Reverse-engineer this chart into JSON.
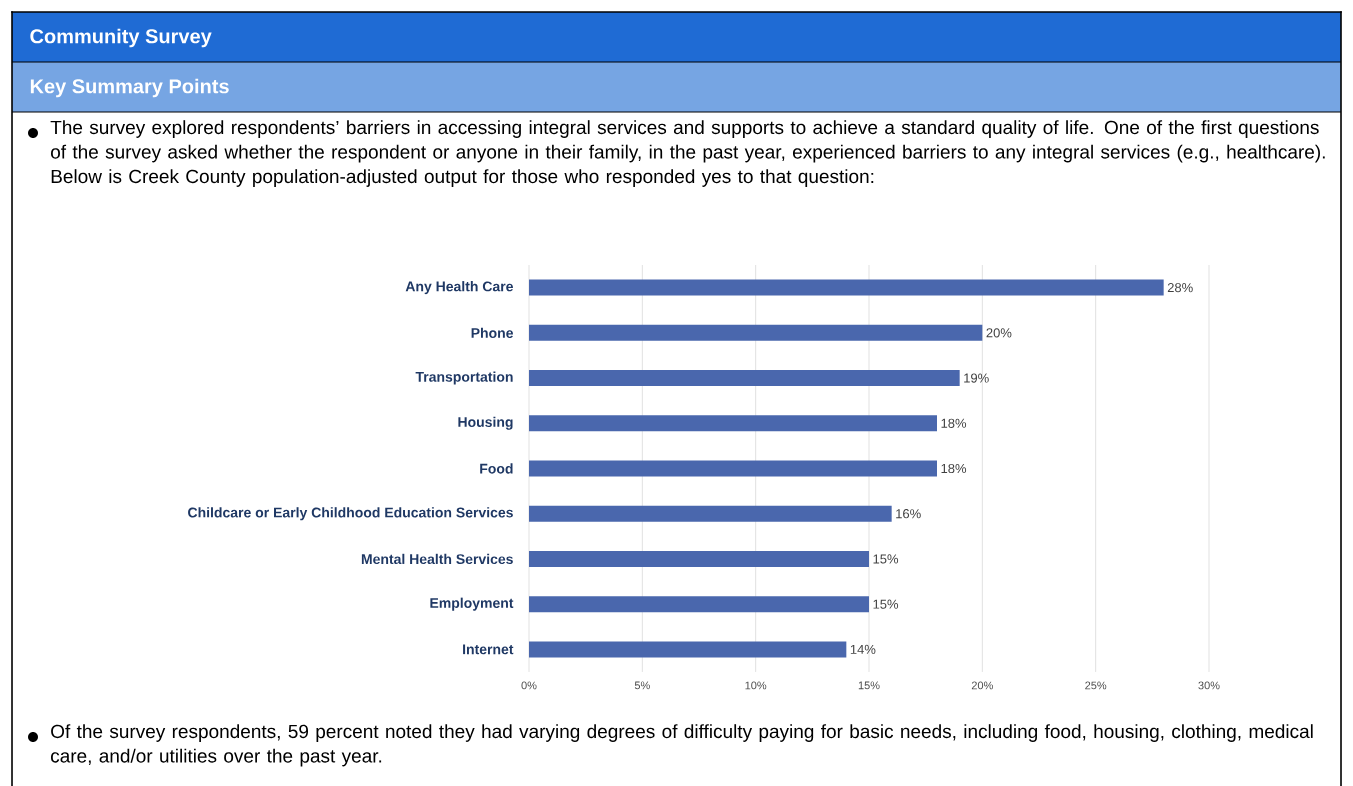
{
  "chart_data": {
    "type": "bar",
    "orientation": "horizontal",
    "title": "Community Survey",
    "subtitle": "Key Summary Points",
    "annotations": [
      "The survey explored respondents’ barriers in accessing integral services and supports to achieve a standard quality of life. One of the first questions of the survey asked whether the respondent or anyone in their family, in the past year, experienced barriers to any integral services (e.g., healthcare). Below is Creek County population-adjusted output for those who responded yes to that question:",
      "Of the survey respondents, 59 percent noted they had varying degrees of difficulty paying for basic needs, including food, housing, clothing, medical care, and/or utilities over the past year."
    ],
    "categories": [
      "Any Health Care",
      "Phone",
      "Transportation",
      "Housing",
      "Food",
      "Childcare or Early Childhood Education Services",
      "Mental Health Services",
      "Employment",
      "Internet"
    ],
    "values": [
      28,
      20,
      19,
      18,
      18,
      16,
      15,
      15,
      14
    ],
    "value_labels": [
      "28%",
      "20%",
      "19%",
      "18%",
      "18%",
      "16%",
      "15%",
      "15%",
      "14%"
    ],
    "color": "#4a67ad",
    "xlim": [
      0,
      30
    ],
    "xticks": [
      {
        "value": 0,
        "label": "0%"
      },
      {
        "value": 5,
        "label": "5%"
      },
      {
        "value": 10,
        "label": "10%"
      },
      {
        "value": 15,
        "label": "15%"
      },
      {
        "value": 20,
        "label": "20%"
      },
      {
        "value": 25,
        "label": "25%"
      },
      {
        "value": 30,
        "label": "30%"
      }
    ],
    "grid": "x"
  }
}
